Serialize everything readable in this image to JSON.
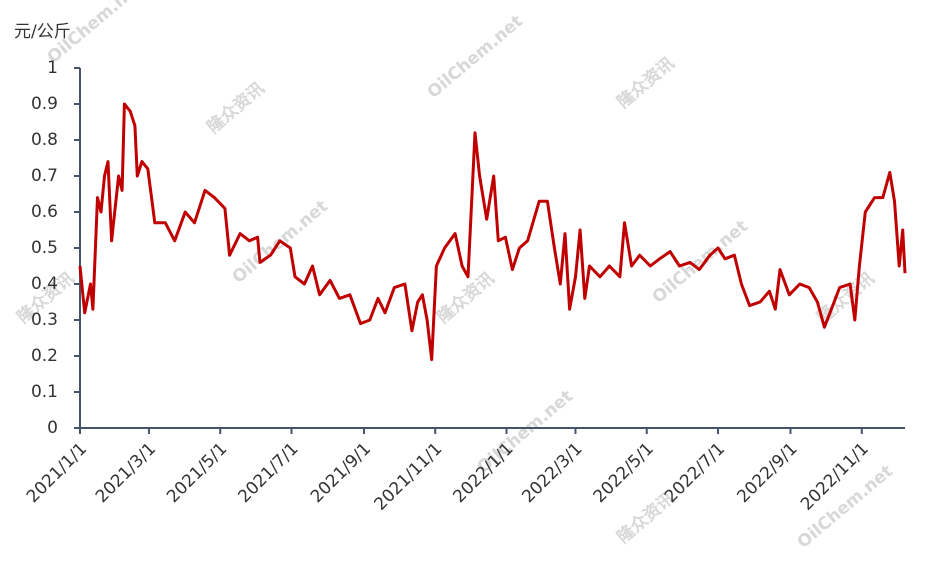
{
  "chart_data": {
    "type": "line",
    "y_label": "元/公斤",
    "watermarks": [
      "隆众资讯",
      "OilChem.net"
    ],
    "xlim": [
      "2021-01-01",
      "2022-12-08"
    ],
    "ylim": [
      0,
      1
    ],
    "yticks": [
      0,
      0.1,
      0.2,
      0.3,
      0.4,
      0.5,
      0.6,
      0.7,
      0.8,
      0.9,
      1
    ],
    "xticks": [
      {
        "value": "2021-01-01",
        "label": "2021/1/1"
      },
      {
        "value": "2021-03-01",
        "label": "2021/3/1"
      },
      {
        "value": "2021-05-01",
        "label": "2021/5/1"
      },
      {
        "value": "2021-07-01",
        "label": "2021/7/1"
      },
      {
        "value": "2021-09-01",
        "label": "2021/9/1"
      },
      {
        "value": "2021-11-01",
        "label": "2021/11/1"
      },
      {
        "value": "2022-01-01",
        "label": "2022/1/1"
      },
      {
        "value": "2022-03-01",
        "label": "2022/3/1"
      },
      {
        "value": "2022-05-01",
        "label": "2022/5/1"
      },
      {
        "value": "2022-07-01",
        "label": "2022/7/1"
      },
      {
        "value": "2022-09-01",
        "label": "2022/9/1"
      },
      {
        "value": "2022-11-01",
        "label": "2022/11/1"
      }
    ],
    "x": [
      "2021-01-01",
      "2021-01-05",
      "2021-01-10",
      "2021-01-12",
      "2021-01-16",
      "2021-01-19",
      "2021-01-22",
      "2021-01-25",
      "2021-01-28",
      "2021-02-03",
      "2021-02-06",
      "2021-02-08",
      "2021-02-13",
      "2021-02-17",
      "2021-02-19",
      "2021-02-23",
      "2021-02-28",
      "2021-03-06",
      "2021-03-15",
      "2021-03-23",
      "2021-04-01",
      "2021-04-09",
      "2021-04-18",
      "2021-04-26",
      "2021-05-05",
      "2021-05-09",
      "2021-05-18",
      "2021-05-26",
      "2021-06-02",
      "2021-06-04",
      "2021-06-13",
      "2021-06-21",
      "2021-06-30",
      "2021-07-04",
      "2021-07-12",
      "2021-07-19",
      "2021-07-25",
      "2021-08-03",
      "2021-08-11",
      "2021-08-20",
      "2021-08-29",
      "2021-09-06",
      "2021-09-13",
      "2021-09-19",
      "2021-09-27",
      "2021-10-06",
      "2021-10-12",
      "2021-10-17",
      "2021-10-21",
      "2021-10-25",
      "2021-10-29",
      "2021-11-02",
      "2021-11-09",
      "2021-11-18",
      "2021-11-24",
      "2021-11-29",
      "2021-12-05",
      "2021-12-09",
      "2021-12-15",
      "2021-12-21",
      "2021-12-25",
      "2021-12-31",
      "2022-01-06",
      "2022-01-12",
      "2022-01-19",
      "2022-01-29",
      "2022-02-05",
      "2022-02-11",
      "2022-02-16",
      "2022-02-20",
      "2022-02-24",
      "2022-03-01",
      "2022-03-05",
      "2022-03-09",
      "2022-03-13",
      "2022-03-22",
      "2022-03-30",
      "2022-04-08",
      "2022-04-12",
      "2022-04-18",
      "2022-04-25",
      "2022-05-04",
      "2022-05-12",
      "2022-05-21",
      "2022-05-29",
      "2022-06-07",
      "2022-06-15",
      "2022-06-24",
      "2022-07-01",
      "2022-07-07",
      "2022-07-15",
      "2022-07-21",
      "2022-07-28",
      "2022-08-06",
      "2022-08-14",
      "2022-08-19",
      "2022-08-23",
      "2022-08-31",
      "2022-09-09",
      "2022-09-17",
      "2022-09-24",
      "2022-09-30",
      "2022-10-06",
      "2022-10-13",
      "2022-10-22",
      "2022-10-26",
      "2022-10-30",
      "2022-11-04",
      "2022-11-12",
      "2022-11-19",
      "2022-11-25",
      "2022-11-29",
      "2022-12-03",
      "2022-12-06",
      "2022-12-08"
    ],
    "series": [
      {
        "name": "price",
        "color": "#c00000",
        "values": [
          0.45,
          0.32,
          0.4,
          0.33,
          0.64,
          0.6,
          0.7,
          0.74,
          0.52,
          0.7,
          0.66,
          0.9,
          0.88,
          0.84,
          0.7,
          0.74,
          0.72,
          0.57,
          0.57,
          0.52,
          0.6,
          0.57,
          0.66,
          0.64,
          0.61,
          0.48,
          0.54,
          0.52,
          0.53,
          0.46,
          0.48,
          0.52,
          0.5,
          0.42,
          0.4,
          0.45,
          0.37,
          0.41,
          0.36,
          0.37,
          0.29,
          0.3,
          0.36,
          0.32,
          0.39,
          0.4,
          0.27,
          0.35,
          0.37,
          0.3,
          0.19,
          0.45,
          0.5,
          0.54,
          0.45,
          0.42,
          0.82,
          0.7,
          0.58,
          0.7,
          0.52,
          0.53,
          0.44,
          0.5,
          0.52,
          0.63,
          0.63,
          0.5,
          0.4,
          0.54,
          0.33,
          0.42,
          0.55,
          0.36,
          0.45,
          0.42,
          0.45,
          0.42,
          0.57,
          0.45,
          0.48,
          0.45,
          0.47,
          0.49,
          0.45,
          0.46,
          0.44,
          0.48,
          0.5,
          0.47,
          0.48,
          0.4,
          0.34,
          0.35,
          0.38,
          0.33,
          0.44,
          0.37,
          0.4,
          0.39,
          0.35,
          0.28,
          0.33,
          0.39,
          0.4,
          0.3,
          0.45,
          0.6,
          0.64,
          0.64,
          0.71,
          0.63,
          0.45,
          0.55,
          0.43
        ]
      }
    ]
  }
}
